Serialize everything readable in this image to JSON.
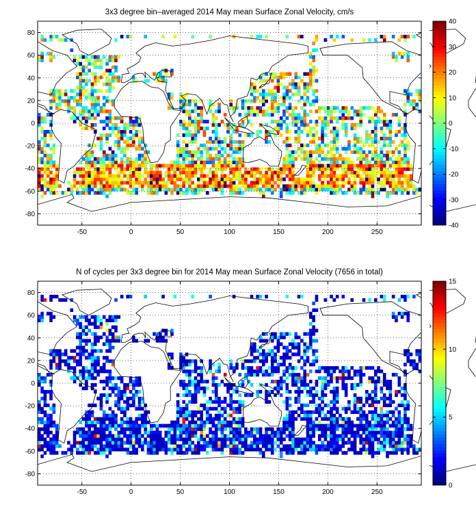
{
  "figure": {
    "background": "#ffffff"
  },
  "chart_data": [
    {
      "type": "heatmap",
      "title": "3x3 degree bin–averaged 2014 May mean Surface Zonal Velocity, cm/s",
      "xlabel": "",
      "ylabel": "",
      "xlim": [
        -95,
        295
      ],
      "ylim": [
        -90,
        90
      ],
      "x_ticks": [
        -50,
        0,
        50,
        100,
        150,
        200,
        250
      ],
      "y_ticks": [
        -80,
        -60,
        -40,
        -20,
        0,
        20,
        40,
        60,
        80
      ],
      "grid": "dotted",
      "bin_size_deg": 3,
      "colorbar": {
        "min": -40,
        "max": 40,
        "ticks": [
          -40,
          -30,
          -20,
          -10,
          0,
          10,
          20,
          30,
          40
        ],
        "colormap": "jet",
        "placement": "right"
      },
      "data_summary": "gridded 3x3 degree bin-averaged zonal velocity values over the world ocean, roughly -40..40 cm/s; strong eastward (positive) values along the Southern Ocean band near -40 to -55 latitude and the Kuroshio / Gulf Stream regions, westward (negative) values along the equatorial belt",
      "panel_label_fill": "#000000"
    },
    {
      "type": "heatmap",
      "title": "N of cycles per 3x3 degree bin for 2014 May mean Surface Zonal Velocity (7656 in total)",
      "xlabel": "",
      "ylabel": "",
      "xlim": [
        -95,
        295
      ],
      "ylim": [
        -90,
        90
      ],
      "x_ticks": [
        -50,
        0,
        50,
        100,
        150,
        200,
        250
      ],
      "y_ticks": [
        -80,
        -60,
        -40,
        -20,
        0,
        20,
        40,
        60,
        80
      ],
      "grid": "dotted",
      "bin_size_deg": 3,
      "total_cycles": 7656,
      "colorbar": {
        "min": 0,
        "max": 15,
        "ticks": [
          0,
          5,
          10,
          15
        ],
        "colormap": "jet",
        "placement": "right"
      },
      "data_summary": "count of float cycles per 3x3 degree bin, mostly 1-3 (dark blue), higher counts (up to ~15) in marginal seas such as the Mediterranean, Arabian Sea and Kuroshio region"
    }
  ]
}
